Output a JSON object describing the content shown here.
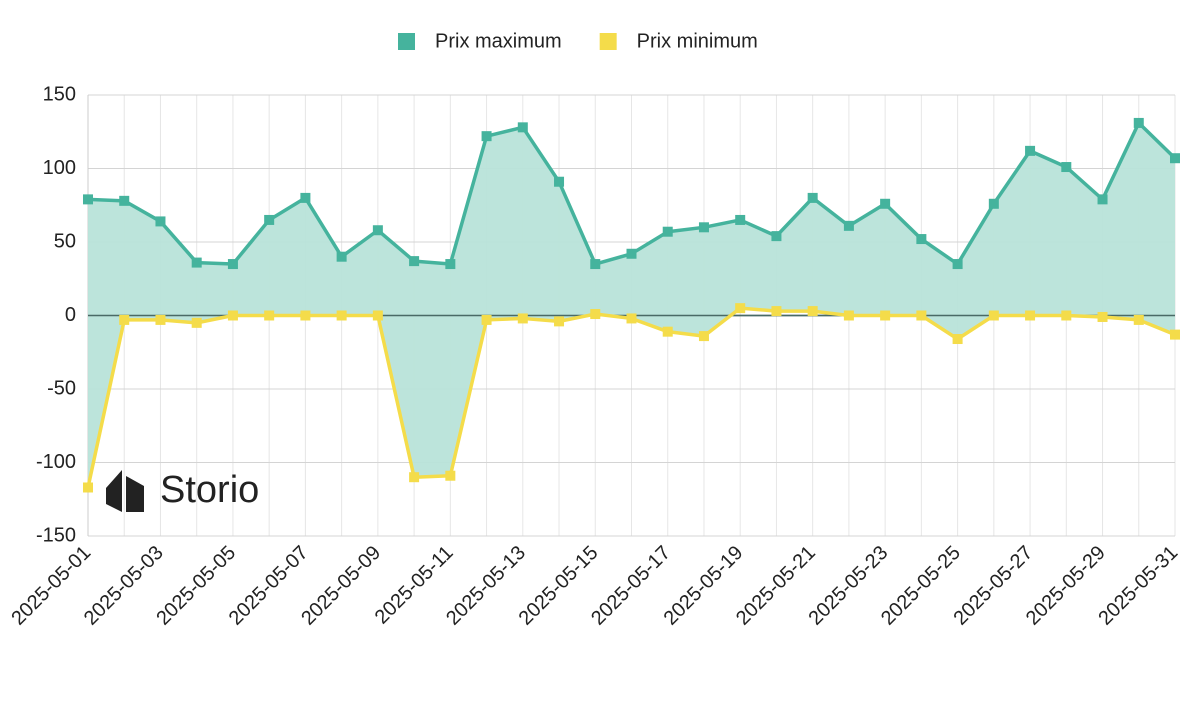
{
  "chart_data": {
    "type": "line",
    "categories": [
      "2025-05-01",
      null,
      "2025-05-03",
      null,
      "2025-05-05",
      null,
      "2025-05-07",
      null,
      "2025-05-09",
      null,
      "2025-05-11",
      null,
      "2025-05-13",
      null,
      "2025-05-15",
      null,
      "2025-05-17",
      null,
      "2025-05-19",
      null,
      "2025-05-21",
      null,
      "2025-05-23",
      null,
      "2025-05-25",
      null,
      "2025-05-27",
      null,
      "2025-05-29",
      null,
      "2025-05-31"
    ],
    "series": [
      {
        "name": "Prix maximum",
        "color": "#45b39d",
        "values": [
          79,
          78,
          64,
          36,
          35,
          65,
          80,
          40,
          58,
          37,
          35,
          122,
          128,
          91,
          35,
          42,
          57,
          60,
          65,
          54,
          80,
          61,
          76,
          52,
          35,
          76,
          112,
          101,
          79,
          131,
          107
        ]
      },
      {
        "name": "Prix minimum",
        "color": "#f4dc4a",
        "values": [
          -117,
          -3,
          -3,
          -5,
          0,
          0,
          0,
          0,
          0,
          -110,
          -109,
          -3,
          -2,
          -4,
          1,
          -2,
          -11,
          -14,
          5,
          3,
          3,
          0,
          0,
          0,
          -16,
          0,
          0,
          0,
          -1,
          -3,
          -13
        ]
      }
    ],
    "fill_between": "#b8e3d9",
    "ylim": [
      -150,
      150
    ],
    "yticks": [
      -150,
      -100,
      -50,
      0,
      50,
      100,
      150
    ],
    "grid": true,
    "legend": "top",
    "watermark": "Storio"
  }
}
